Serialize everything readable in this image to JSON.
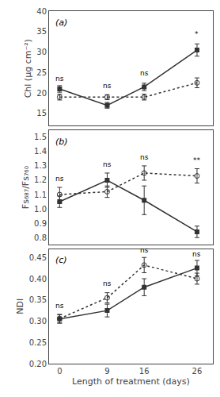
{
  "chart_data": [
    {
      "type": "line",
      "title": "(a)",
      "ylabel": "Chl (μg cm⁻²)",
      "x": [
        0,
        9,
        16,
        26
      ],
      "series": [
        {
          "values": [
            21.0,
            17.0,
            21.5,
            30.5
          ],
          "yerr": [
            0.8,
            0.7,
            0.9,
            1.5
          ],
          "color": "#333333",
          "marker": "square",
          "line_style": "solid"
        },
        {
          "values": [
            19.0,
            19.0,
            19.0,
            22.5
          ],
          "yerr": [
            0.7,
            0.6,
            0.7,
            1.2
          ],
          "color": "#333333",
          "marker": "circle-open",
          "line_style": "dotted"
        }
      ],
      "annotations": [
        {
          "x": 0,
          "y": 22.2,
          "text": "ns"
        },
        {
          "x": 9,
          "y": 20.5,
          "text": "ns"
        },
        {
          "x": 16,
          "y": 23.5,
          "text": "ns"
        },
        {
          "x": 26,
          "y": 33.0,
          "text": "*"
        }
      ],
      "xlim": [
        -2,
        29
      ],
      "xticks": [
        0,
        9,
        16,
        26
      ],
      "ylim": [
        12,
        40
      ],
      "yticks": [
        15,
        20,
        25,
        30,
        35,
        40
      ],
      "grid": false,
      "tick_labels": "y"
    },
    {
      "type": "line",
      "title": "(b)",
      "ylabel": "Fs₆₈₇/Fs₇₆₀",
      "x": [
        0,
        9,
        16,
        26
      ],
      "series": [
        {
          "values": [
            1.05,
            1.2,
            1.06,
            0.84
          ],
          "yerr": [
            0.04,
            0.05,
            0.1,
            0.04
          ],
          "color": "#333333",
          "marker": "square",
          "line_style": "solid"
        },
        {
          "values": [
            1.1,
            1.12,
            1.25,
            1.23
          ],
          "yerr": [
            0.05,
            0.04,
            0.05,
            0.05
          ],
          "color": "#333333",
          "marker": "circle-open",
          "line_style": "dotted"
        }
      ],
      "annotations": [
        {
          "x": 0,
          "y": 1.17,
          "text": "ns"
        },
        {
          "x": 9,
          "y": 1.27,
          "text": "ns"
        },
        {
          "x": 16,
          "y": 1.32,
          "text": "ns"
        },
        {
          "x": 26,
          "y": 1.3,
          "text": "**"
        }
      ],
      "xlim": [
        -2,
        29
      ],
      "xticks": [
        0,
        9,
        16,
        26
      ],
      "ylim": [
        0.75,
        1.55
      ],
      "yticks": [
        0.8,
        0.9,
        {
          "value": 1.0,
          "label": "1.0"
        },
        1.1,
        1.2,
        1.3,
        1.4,
        1.5
      ],
      "grid": false,
      "tick_labels": "y"
    },
    {
      "type": "line",
      "title": "(c)",
      "ylabel": "NDI",
      "xlabel": "Length of treatment (days)",
      "x": [
        0,
        9,
        16,
        26
      ],
      "series": [
        {
          "values": [
            0.305,
            0.325,
            0.38,
            0.425
          ],
          "yerr": [
            0.01,
            0.015,
            0.02,
            0.018
          ],
          "color": "#333333",
          "marker": "square",
          "line_style": "solid"
        },
        {
          "values": [
            0.306,
            0.355,
            0.432,
            0.4
          ],
          "yerr": [
            0.01,
            0.012,
            0.018,
            0.013
          ],
          "color": "#333333",
          "marker": "circle-open",
          "line_style": "dotted"
        }
      ],
      "annotations": [
        {
          "x": 0,
          "y": 0.323,
          "text": "ns"
        },
        {
          "x": 9,
          "y": 0.375,
          "text": "ns"
        },
        {
          "x": 16,
          "y": 0.455,
          "text": "ns"
        },
        {
          "x": 26,
          "y": 0.445,
          "text": "ns"
        }
      ],
      "xlim": [
        -2,
        29
      ],
      "xticks": [
        0,
        9,
        16,
        26
      ],
      "ylim": [
        0.2,
        0.47
      ],
      "yticks": [
        {
          "value": 0.2,
          "label": "0.20"
        },
        0.25,
        {
          "value": 0.3,
          "label": "0.30"
        },
        0.35,
        {
          "value": 0.4,
          "label": "0.40"
        },
        0.45
      ],
      "grid": false
    }
  ]
}
